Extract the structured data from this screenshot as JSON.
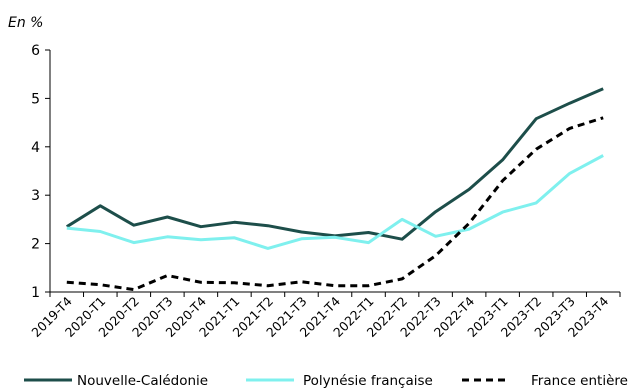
{
  "chart_data": {
    "type": "line",
    "unit_label": "En %",
    "title": "",
    "xlabel": "",
    "ylabel": "",
    "ylim": [
      1,
      6
    ],
    "yticks": [
      "1",
      "2",
      "3",
      "4",
      "5",
      "6"
    ],
    "grid": false,
    "legend_position": "bottom",
    "categories": [
      "2019-T4",
      "2020-T1",
      "2020-T2",
      "2020-T3",
      "2020-T4",
      "2021-T1",
      "2021-T2",
      "2021-T3",
      "2021-T4",
      "2022-T1",
      "2022-T2",
      "2022-T3",
      "2022-T4",
      "2023-T1",
      "2023-T2",
      "2023-T3",
      "2023-T4"
    ],
    "series": [
      {
        "name": "Nouvelle-Calédonie",
        "color": "#1d4e4a",
        "style": "solid",
        "values": [
          2.35,
          2.78,
          2.38,
          2.55,
          2.35,
          2.44,
          2.37,
          2.24,
          2.16,
          2.23,
          2.09,
          2.66,
          3.12,
          3.73,
          4.58,
          4.9,
          5.2
        ]
      },
      {
        "name": "Polynésie française",
        "color": "#7ff0ee",
        "style": "solid",
        "values": [
          2.32,
          2.25,
          2.02,
          2.14,
          2.08,
          2.12,
          1.9,
          2.1,
          2.13,
          2.02,
          2.5,
          2.15,
          2.3,
          2.65,
          2.84,
          3.45,
          3.82
        ]
      },
      {
        "name": "France entière",
        "color": "#000000",
        "style": "dashed",
        "values": [
          1.2,
          1.15,
          1.05,
          1.34,
          1.2,
          1.19,
          1.13,
          1.21,
          1.13,
          1.13,
          1.27,
          1.75,
          2.42,
          3.3,
          3.95,
          4.38,
          4.6
        ]
      }
    ]
  }
}
